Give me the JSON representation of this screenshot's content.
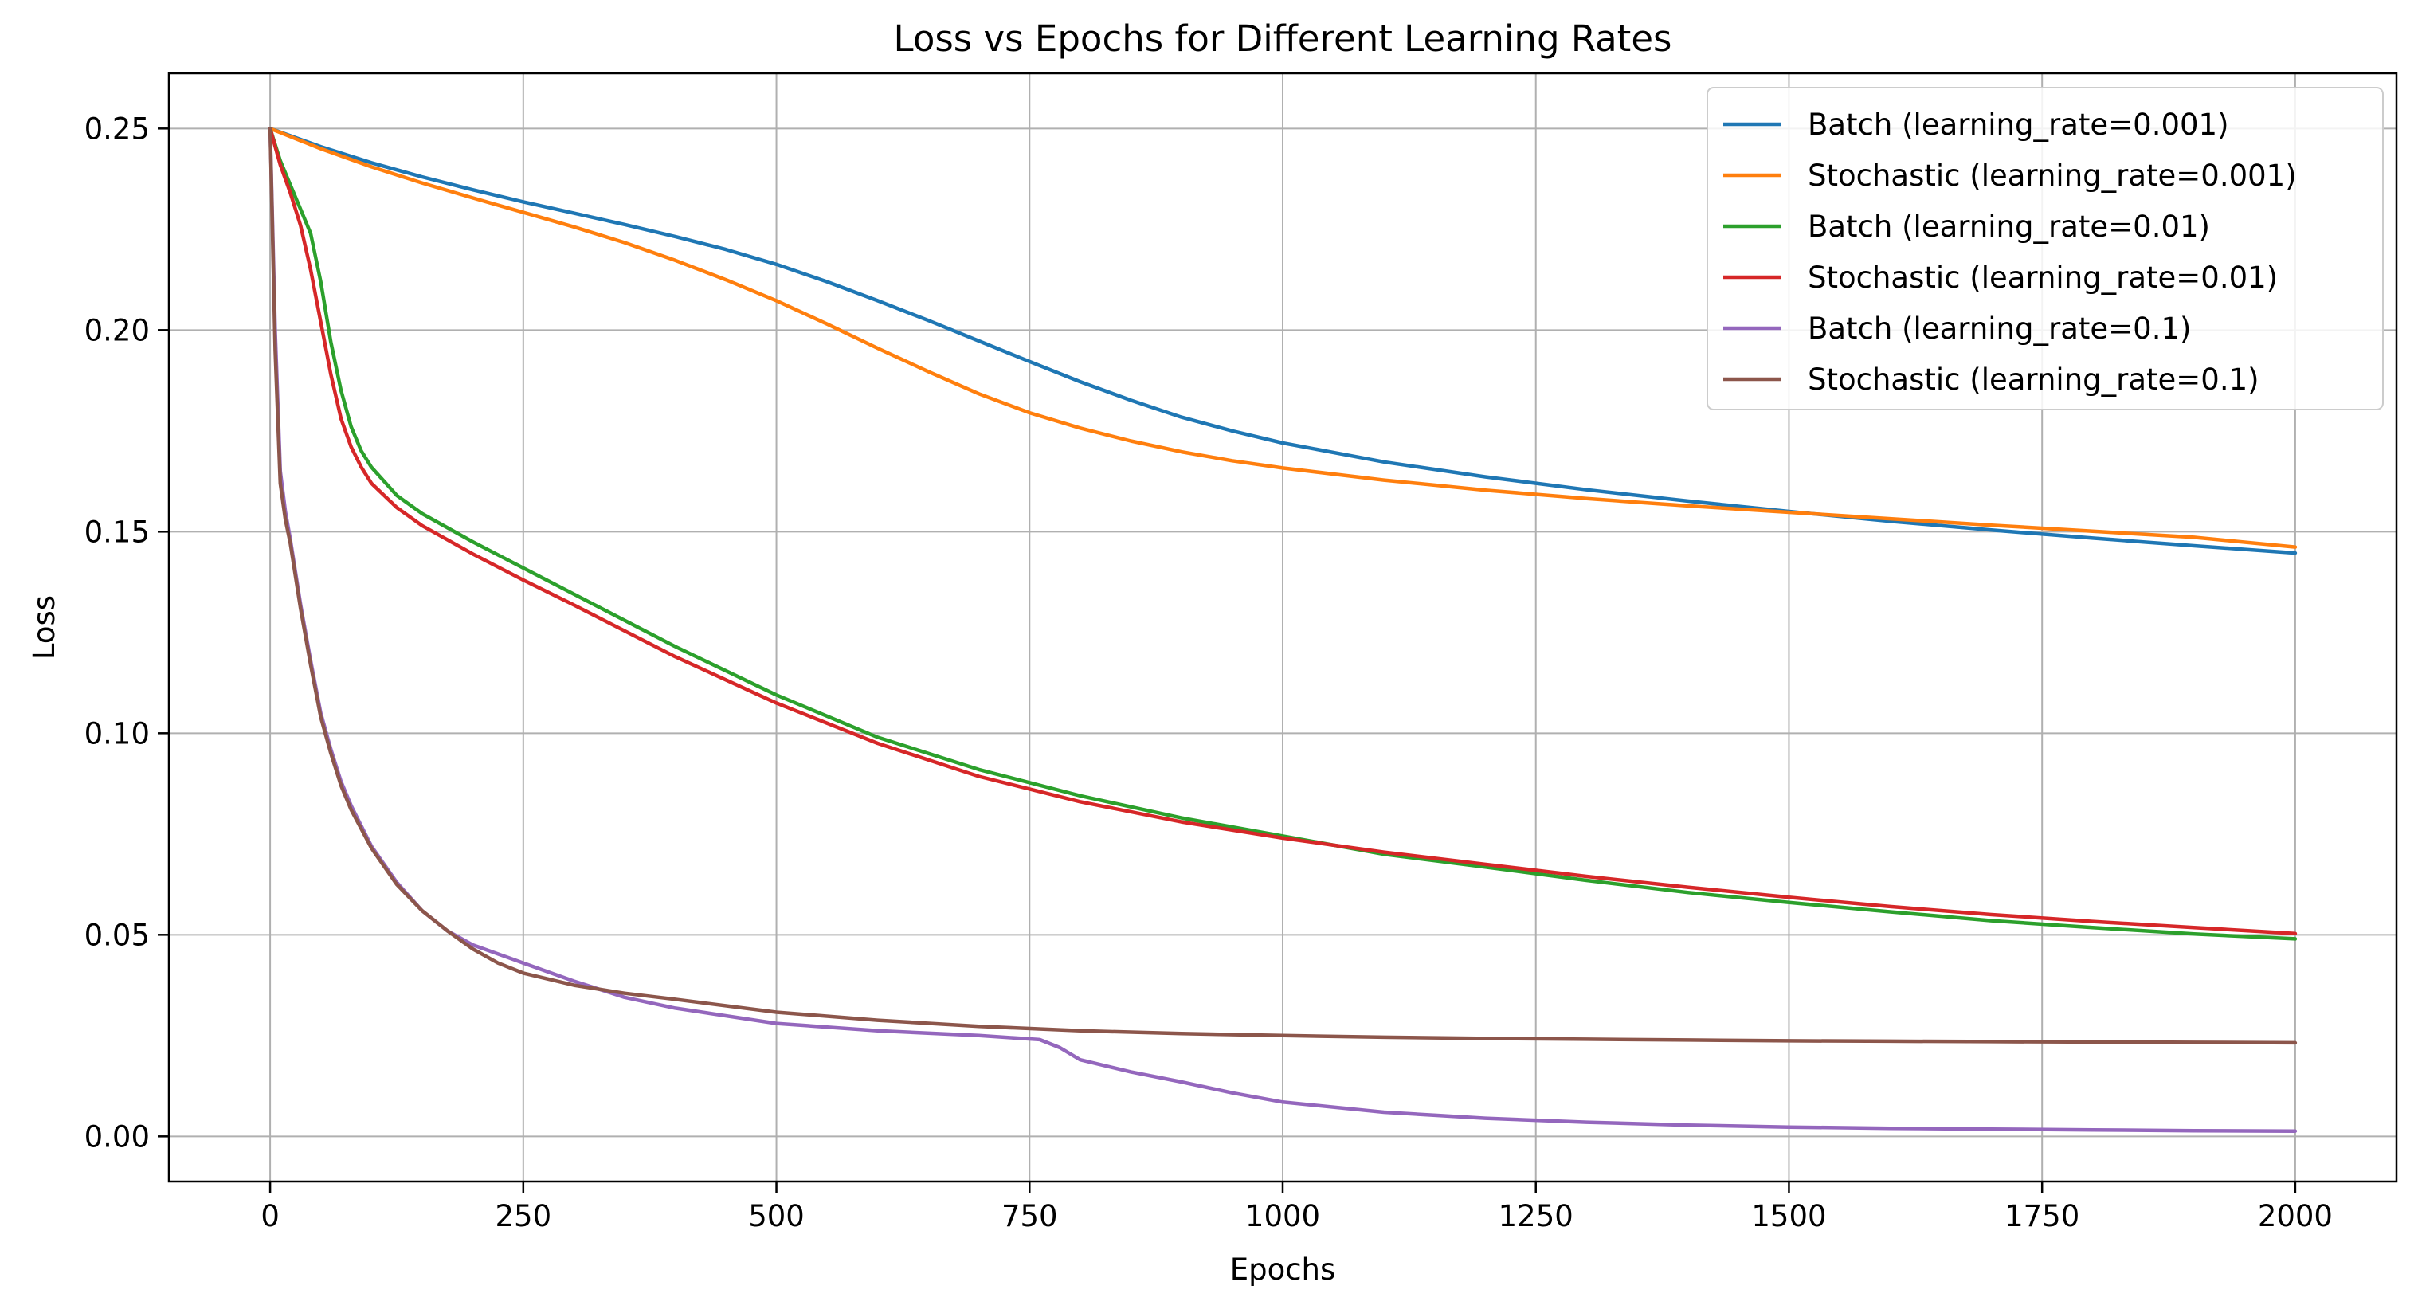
{
  "chart_data": {
    "type": "line",
    "title": "Loss vs Epochs for Different Learning Rates",
    "xlabel": "Epochs",
    "ylabel": "Loss",
    "xlim": [
      -100,
      2100
    ],
    "ylim": [
      -0.0112,
      0.2637
    ],
    "xticks": [
      0,
      250,
      500,
      750,
      1000,
      1250,
      1500,
      1750,
      2000
    ],
    "yticks": [
      0.0,
      0.05,
      0.1,
      0.15,
      0.2,
      0.25
    ],
    "xtick_labels": [
      "0",
      "250",
      "500",
      "750",
      "1000",
      "1250",
      "1500",
      "1750",
      "2000"
    ],
    "ytick_labels": [
      "0.00",
      "0.05",
      "0.10",
      "0.15",
      "0.20",
      "0.25"
    ],
    "grid": true,
    "legend_position": "top-right",
    "series": [
      {
        "name": "Batch (learning_rate=0.001)",
        "color": "#1f77b4",
        "x": [
          0,
          50,
          100,
          150,
          200,
          250,
          300,
          350,
          400,
          450,
          500,
          550,
          600,
          650,
          700,
          750,
          800,
          850,
          900,
          950,
          1000,
          1100,
          1200,
          1300,
          1400,
          1500,
          1600,
          1700,
          1800,
          1900,
          2000
        ],
        "y": [
          0.25,
          0.2455,
          0.2415,
          0.238,
          0.2348,
          0.2318,
          0.229,
          0.2262,
          0.2232,
          0.22,
          0.2163,
          0.212,
          0.2073,
          0.2024,
          0.1973,
          0.1922,
          0.1872,
          0.1826,
          0.1784,
          0.175,
          0.172,
          0.1673,
          0.1636,
          0.1604,
          0.1576,
          0.155,
          0.1526,
          0.1504,
          0.1484,
          0.1465,
          0.1447
        ]
      },
      {
        "name": "Stochastic (learning_rate=0.001)",
        "color": "#ff7f0e",
        "x": [
          0,
          50,
          100,
          150,
          200,
          250,
          300,
          350,
          400,
          450,
          500,
          550,
          600,
          650,
          700,
          750,
          800,
          850,
          900,
          950,
          1000,
          1100,
          1200,
          1300,
          1400,
          1500,
          1600,
          1700,
          1800,
          1900,
          2000
        ],
        "y": [
          0.25,
          0.245,
          0.2405,
          0.2365,
          0.2328,
          0.2292,
          0.2256,
          0.2217,
          0.2173,
          0.2125,
          0.2073,
          0.2015,
          0.1955,
          0.1897,
          0.1842,
          0.1795,
          0.1757,
          0.1725,
          0.1698,
          0.1676,
          0.1658,
          0.1628,
          0.1603,
          0.1582,
          0.1564,
          0.1548,
          0.1532,
          0.1516,
          0.1501,
          0.1486,
          0.1462
        ]
      },
      {
        "name": "Batch (learning_rate=0.01)",
        "color": "#2ca02c",
        "x": [
          0,
          10,
          20,
          30,
          40,
          50,
          60,
          70,
          80,
          90,
          100,
          125,
          150,
          200,
          250,
          300,
          400,
          500,
          600,
          700,
          800,
          900,
          1000,
          1100,
          1200,
          1300,
          1400,
          1500,
          1600,
          1700,
          1800,
          1900,
          2000
        ],
        "y": [
          0.25,
          0.242,
          0.236,
          0.23,
          0.224,
          0.212,
          0.197,
          0.185,
          0.176,
          0.17,
          0.166,
          0.159,
          0.1545,
          0.1475,
          0.141,
          0.1345,
          0.1215,
          0.1095,
          0.099,
          0.091,
          0.0845,
          0.079,
          0.0745,
          0.07,
          0.0668,
          0.0635,
          0.0605,
          0.058,
          0.0557,
          0.0535,
          0.0518,
          0.0502,
          0.049
        ]
      },
      {
        "name": "Stochastic (learning_rate=0.01)",
        "color": "#d62728",
        "x": [
          0,
          10,
          20,
          30,
          40,
          50,
          60,
          70,
          80,
          90,
          100,
          125,
          150,
          200,
          250,
          300,
          400,
          500,
          600,
          700,
          800,
          900,
          1000,
          1100,
          1200,
          1300,
          1400,
          1500,
          1600,
          1700,
          1800,
          1900,
          2000
        ],
        "y": [
          0.25,
          0.241,
          0.234,
          0.226,
          0.215,
          0.202,
          0.189,
          0.178,
          0.171,
          0.166,
          0.162,
          0.156,
          0.1515,
          0.1445,
          0.138,
          0.1318,
          0.119,
          0.1075,
          0.0975,
          0.0893,
          0.083,
          0.078,
          0.074,
          0.0705,
          0.0675,
          0.0645,
          0.0618,
          0.0593,
          0.057,
          0.055,
          0.0533,
          0.0518,
          0.0503
        ]
      },
      {
        "name": "Batch (learning_rate=0.1)",
        "color": "#9467bd",
        "x": [
          0,
          5,
          10,
          15,
          20,
          30,
          40,
          50,
          60,
          70,
          80,
          100,
          125,
          150,
          175,
          200,
          250,
          300,
          350,
          400,
          500,
          600,
          700,
          760,
          780,
          800,
          850,
          900,
          950,
          1000,
          1100,
          1200,
          1300,
          1400,
          1500,
          1600,
          1700,
          1800,
          1900,
          2000
        ],
        "y": [
          0.25,
          0.2,
          0.165,
          0.155,
          0.148,
          0.132,
          0.118,
          0.105,
          0.096,
          0.088,
          0.082,
          0.072,
          0.063,
          0.056,
          0.051,
          0.0475,
          0.043,
          0.0385,
          0.0345,
          0.0318,
          0.028,
          0.0262,
          0.025,
          0.024,
          0.022,
          0.019,
          0.016,
          0.0135,
          0.0108,
          0.0085,
          0.006,
          0.0045,
          0.0035,
          0.0028,
          0.0023,
          0.002,
          0.0018,
          0.0016,
          0.0014,
          0.0013
        ]
      },
      {
        "name": "Stochastic (learning_rate=0.1)",
        "color": "#8c564b",
        "x": [
          0,
          5,
          10,
          15,
          20,
          30,
          40,
          50,
          60,
          70,
          80,
          100,
          125,
          150,
          175,
          200,
          225,
          250,
          300,
          350,
          400,
          500,
          600,
          700,
          800,
          900,
          1000,
          1100,
          1200,
          1300,
          1400,
          1500,
          1600,
          1700,
          1800,
          1900,
          2000
        ],
        "y": [
          0.25,
          0.195,
          0.162,
          0.153,
          0.147,
          0.131,
          0.117,
          0.104,
          0.095,
          0.087,
          0.081,
          0.0715,
          0.0625,
          0.056,
          0.051,
          0.0465,
          0.043,
          0.0405,
          0.0375,
          0.0355,
          0.034,
          0.0308,
          0.0288,
          0.0273,
          0.0262,
          0.0255,
          0.025,
          0.0246,
          0.0243,
          0.0241,
          0.0239,
          0.0237,
          0.0236,
          0.0235,
          0.0234,
          0.0233,
          0.0232
        ]
      }
    ]
  }
}
